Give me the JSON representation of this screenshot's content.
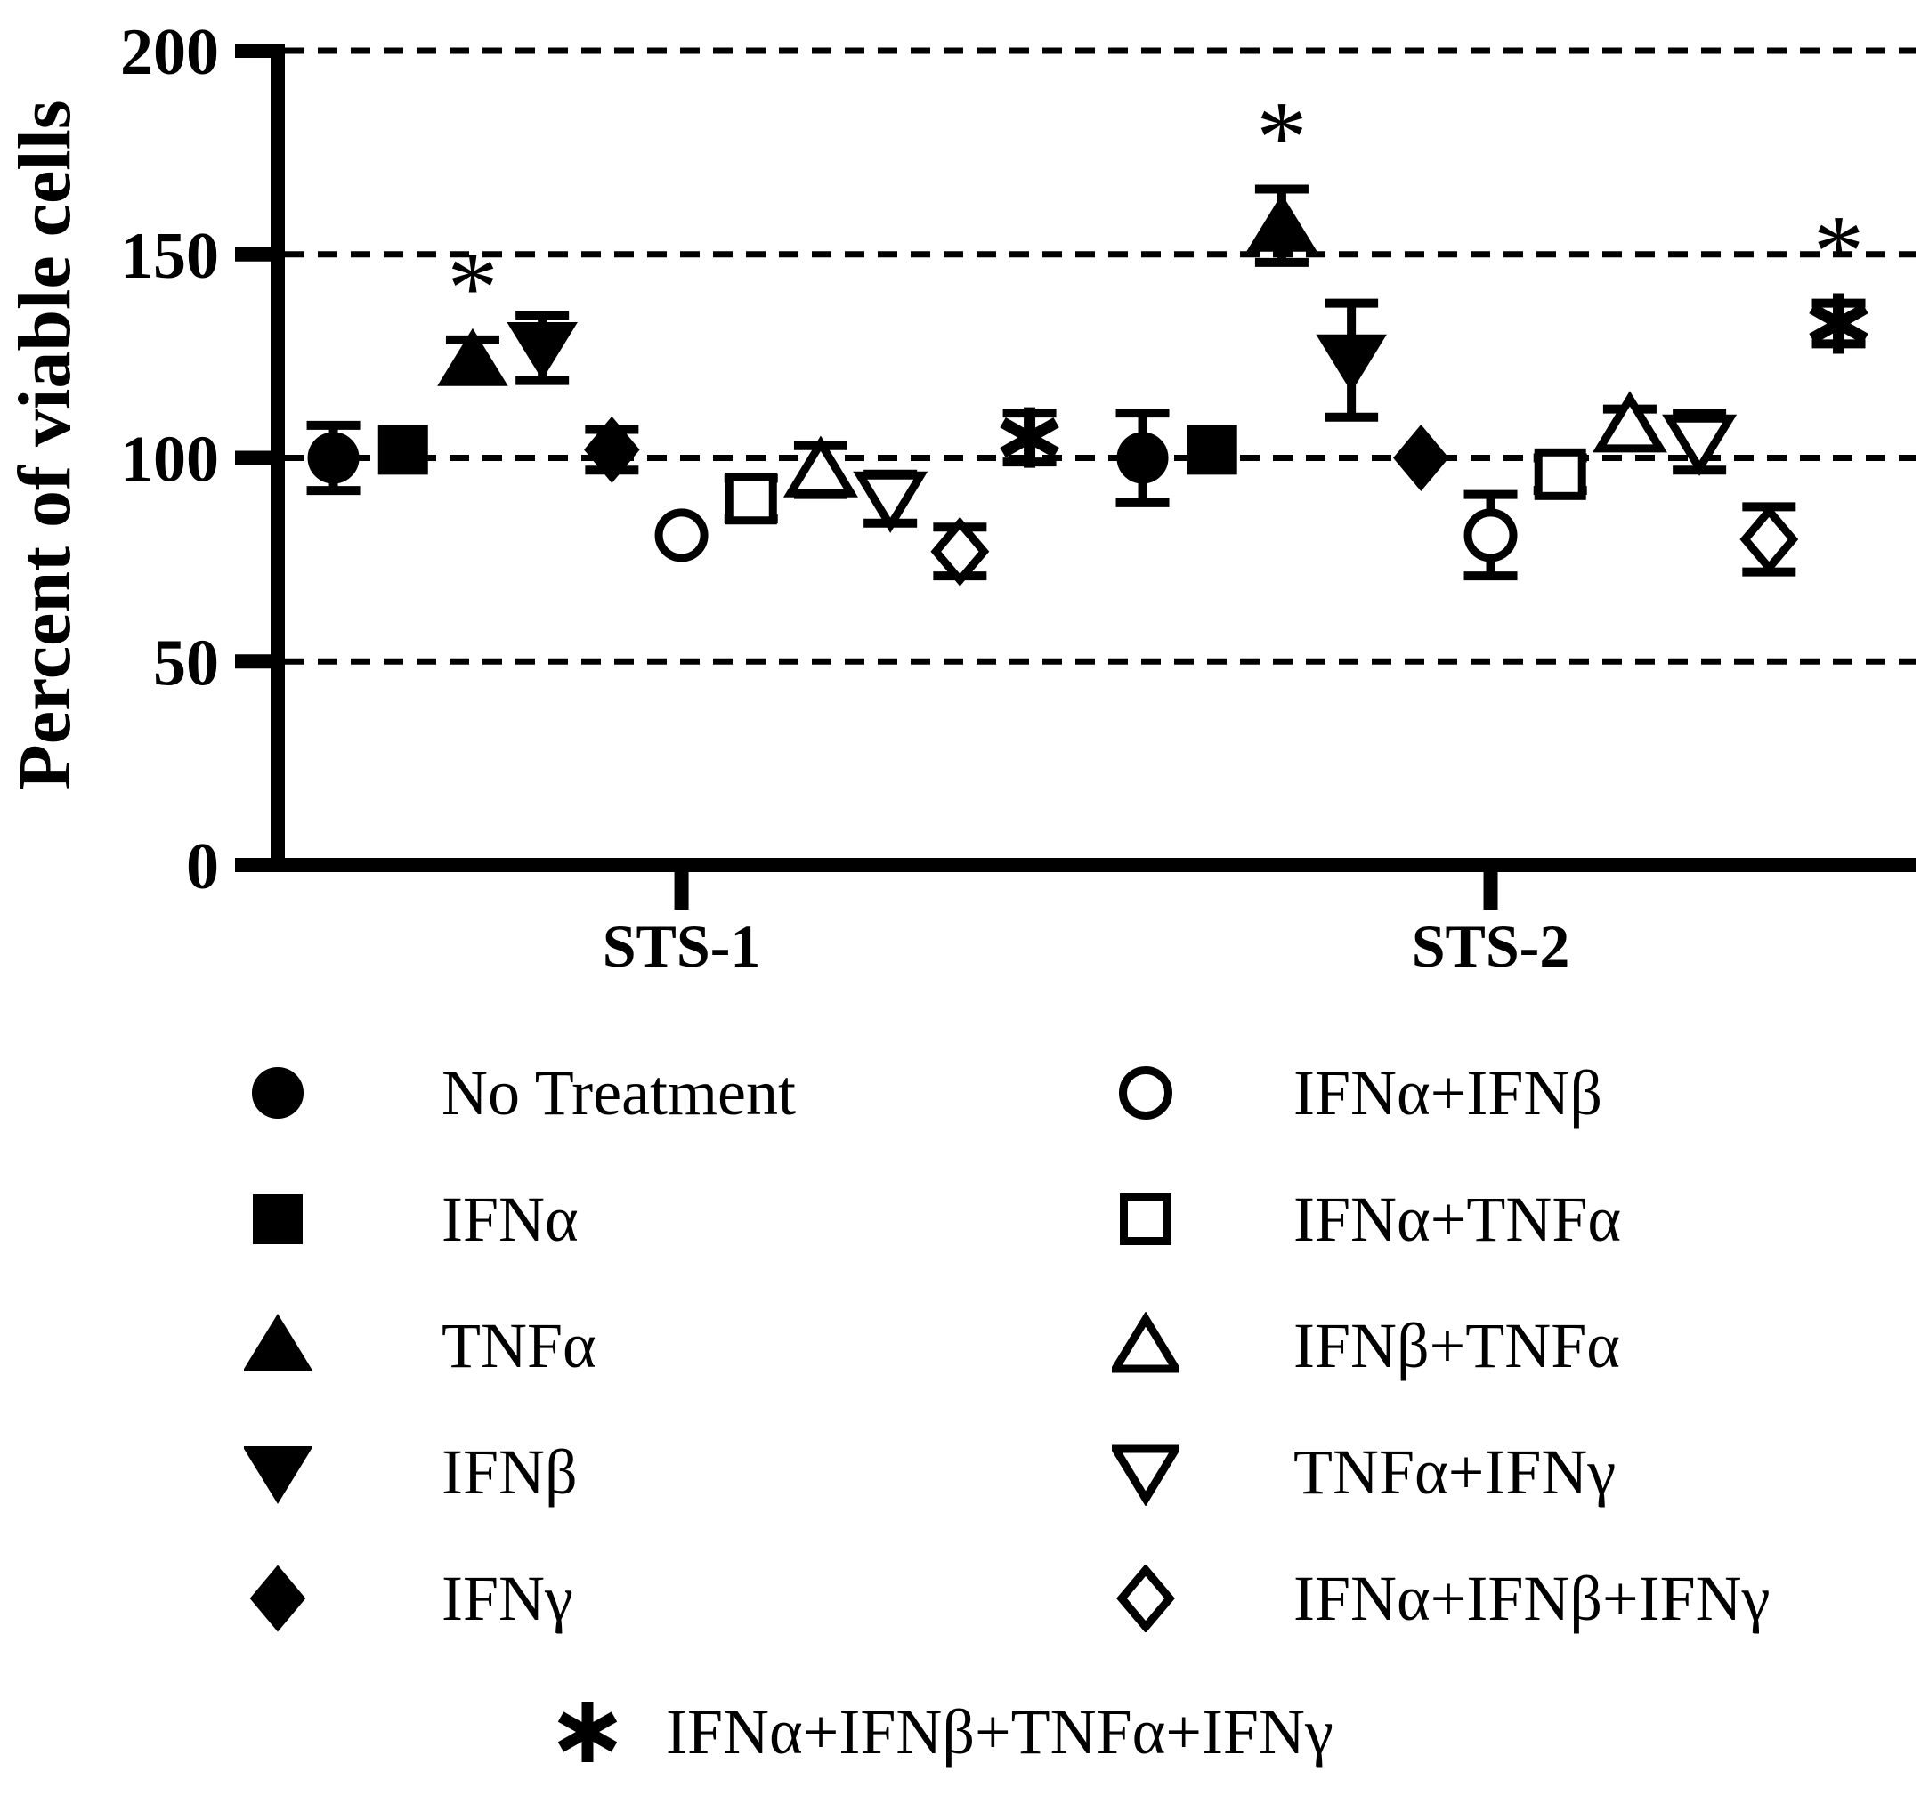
{
  "chart_data": {
    "type": "scatter",
    "title": "",
    "ylabel": "Percent of viable cells",
    "xlabel": "",
    "ylim": [
      0,
      200
    ],
    "y_ticks": [
      0,
      50,
      100,
      150,
      200
    ],
    "gridlines_at": [
      50,
      100,
      150,
      200
    ],
    "grid_style": "dashed",
    "legend_position": "bottom",
    "significance_symbol": "*",
    "categories": [
      "STS-1",
      "STS-2"
    ],
    "series": [
      {
        "name": "No Treatment",
        "marker": "circle-filled",
        "values": [
          100,
          100
        ],
        "errors": [
          8,
          11
        ],
        "significant": [
          false,
          false
        ]
      },
      {
        "name": "IFNα",
        "marker": "square-filled",
        "values": [
          102,
          102
        ],
        "errors": [
          0,
          0
        ],
        "significant": [
          false,
          false
        ]
      },
      {
        "name": "TNFα",
        "marker": "triangle-up-filled",
        "values": [
          124,
          157
        ],
        "errors": [
          5,
          9
        ],
        "significant": [
          true,
          true
        ]
      },
      {
        "name": "IFNβ",
        "marker": "triangle-down-filled",
        "values": [
          127,
          124
        ],
        "errors": [
          8,
          14
        ],
        "significant": [
          false,
          false
        ]
      },
      {
        "name": "IFNγ",
        "marker": "diamond-filled",
        "values": [
          102,
          100
        ],
        "errors": [
          5,
          0
        ],
        "significant": [
          false,
          false
        ]
      },
      {
        "name": "IFNα+IFNβ",
        "marker": "circle-open",
        "values": [
          81,
          81
        ],
        "errors": [
          0,
          10
        ],
        "significant": [
          false,
          false
        ]
      },
      {
        "name": "IFNα+TNFα",
        "marker": "square-open",
        "values": [
          90,
          96
        ],
        "errors": [
          5,
          4
        ],
        "significant": [
          false,
          false
        ]
      },
      {
        "name": "IFNβ+TNFα",
        "marker": "triangle-up-open",
        "values": [
          97,
          108
        ],
        "errors": [
          6,
          4
        ],
        "significant": [
          false,
          false
        ]
      },
      {
        "name": "TNFα+IFNγ",
        "marker": "triangle-down-open",
        "values": [
          90,
          104
        ],
        "errors": [
          6,
          7
        ],
        "significant": [
          false,
          false
        ]
      },
      {
        "name": "IFNα+IFNβ+IFNγ",
        "marker": "diamond-open",
        "values": [
          77,
          80
        ],
        "errors": [
          6,
          8
        ],
        "significant": [
          false,
          false
        ]
      },
      {
        "name": "IFNα+IFNβ+TNFα+IFNγ",
        "marker": "star",
        "values": [
          105,
          133
        ],
        "errors": [
          6,
          5
        ],
        "significant": [
          false,
          true
        ]
      }
    ]
  },
  "legend": {
    "columns": [
      {
        "items": [
          {
            "marker": "circle-filled",
            "label": "No Treatment"
          },
          {
            "marker": "square-filled",
            "label": "IFNα"
          },
          {
            "marker": "triangle-up-filled",
            "label": "TNFα"
          },
          {
            "marker": "triangle-down-filled",
            "label": "IFNβ"
          },
          {
            "marker": "diamond-filled",
            "label": "IFNγ"
          }
        ]
      },
      {
        "items": [
          {
            "marker": "circle-open",
            "label": "IFNα+IFNβ"
          },
          {
            "marker": "square-open",
            "label": "IFNα+TNFα"
          },
          {
            "marker": "triangle-up-open",
            "label": "IFNβ+TNFα"
          },
          {
            "marker": "triangle-down-open",
            "label": "TNFα+IFNγ"
          },
          {
            "marker": "diamond-open",
            "label": "IFNα+IFNβ+IFNγ"
          }
        ]
      }
    ],
    "bottom_item": {
      "marker": "star",
      "label": "IFNα+IFNβ+TNFα+IFNγ"
    }
  }
}
